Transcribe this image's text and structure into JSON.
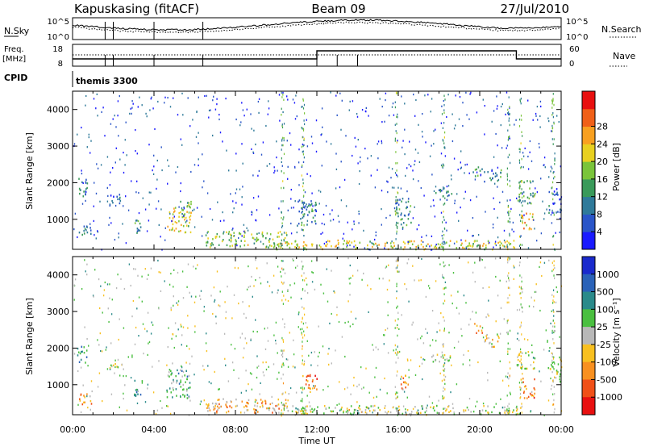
{
  "header": {
    "station": "Kapuskasing (fitACF)",
    "beam": "Beam 09",
    "date": "27/Jul/2010"
  },
  "top_panels": {
    "nsky_label": "N.Sky",
    "nsearch_label": "N.Search",
    "nsky_ticks": [
      "10^5",
      "10^0"
    ],
    "nsearch_ticks": [
      "10^5",
      "10^0"
    ],
    "freq_label_1": "Freq.",
    "freq_label_2": "[MHz]",
    "freq_ticks": [
      "18",
      "8"
    ],
    "nave_label": "Nave",
    "nave_ticks": [
      "60",
      "0"
    ],
    "cpid_label": "CPID",
    "cpid_value": "themis 3300"
  },
  "chart_data": [
    {
      "type": "heatmap",
      "name": "power",
      "ylabel": "Slant Range [km]",
      "yticks": [
        "1000",
        "2000",
        "3000",
        "4000"
      ],
      "ylim": [
        180,
        4500
      ],
      "xticks": [
        "00:00",
        "04:00",
        "08:00",
        "12:00",
        "16:00",
        "20:00",
        "00:00"
      ],
      "xlim_hours": [
        0,
        24
      ],
      "colorbar": {
        "label": "Power [dB]",
        "ticks": [
          "4",
          "8",
          "12",
          "16",
          "20",
          "24",
          "28"
        ],
        "colors": [
          "#1a1aff",
          "#2a55c8",
          "#2f7a9a",
          "#3a9a5a",
          "#7ac43a",
          "#e8d020",
          "#f8a020",
          "#f06018",
          "#e81010"
        ]
      },
      "patches": [
        {
          "t0": 0.2,
          "t1": 0.7,
          "r0": 1600,
          "r1": 2200,
          "level": 0.3
        },
        {
          "t0": 0.3,
          "t1": 0.9,
          "r0": 550,
          "r1": 950,
          "level": 0.3
        },
        {
          "t0": 1.8,
          "t1": 2.4,
          "r0": 1300,
          "r1": 1700,
          "level": 0.2
        },
        {
          "t0": 3.0,
          "t1": 3.4,
          "r0": 650,
          "r1": 1150,
          "level": 0.3
        },
        {
          "t0": 4.6,
          "t1": 5.8,
          "r0": 650,
          "r1": 1350,
          "level": 0.6
        },
        {
          "t0": 5.2,
          "t1": 5.8,
          "r0": 1150,
          "r1": 1600,
          "level": 0.4
        },
        {
          "t0": 6.5,
          "t1": 10.5,
          "r0": 250,
          "r1": 700,
          "level": 0.5
        },
        {
          "t0": 11.0,
          "t1": 12.0,
          "r0": 850,
          "r1": 1600,
          "level": 0.3
        },
        {
          "t0": 10.0,
          "t1": 22.0,
          "r0": 200,
          "r1": 450,
          "level": 0.6
        },
        {
          "t0": 15.8,
          "t1": 16.6,
          "r0": 800,
          "r1": 1600,
          "level": 0.3
        },
        {
          "t0": 17.8,
          "t1": 18.6,
          "r0": 1550,
          "r1": 1850,
          "level": 0.3
        },
        {
          "t0": 19.6,
          "t1": 20.2,
          "r0": 2200,
          "r1": 2450,
          "level": 0.4
        },
        {
          "t0": 20.2,
          "t1": 21.2,
          "r0": 2050,
          "r1": 2400,
          "level": 0.3
        },
        {
          "t0": 21.8,
          "t1": 22.7,
          "r0": 1450,
          "r1": 2100,
          "level": 0.4
        },
        {
          "t0": 22.0,
          "t1": 22.6,
          "r0": 700,
          "r1": 1200,
          "level": 0.7
        },
        {
          "t0": 23.3,
          "t1": 24.0,
          "r0": 1200,
          "r1": 1900,
          "level": 0.2
        }
      ]
    },
    {
      "type": "heatmap",
      "name": "velocity",
      "ylabel": "Slant Range [km]",
      "yticks": [
        "1000",
        "2000",
        "3000",
        "4000"
      ],
      "ylim": [
        180,
        4500
      ],
      "xticks": [
        "00:00",
        "04:00",
        "08:00",
        "12:00",
        "16:00",
        "20:00",
        "00:00"
      ],
      "xlabel": "Time UT",
      "xlim_hours": [
        0,
        24
      ],
      "colorbar": {
        "label": "Velocity [m s⁻¹]",
        "ticks": [
          "1000",
          "500",
          "100",
          "25",
          "-25",
          "-100",
          "-500",
          "-1000"
        ],
        "colors": [
          "#1a2acc",
          "#2a62b8",
          "#2a8a8a",
          "#4abf40",
          "#b8b8b8",
          "#f8c020",
          "#f89020",
          "#f05018",
          "#e81010"
        ]
      },
      "patches": [
        {
          "t0": 0.2,
          "t1": 0.7,
          "r0": 1600,
          "r1": 2100,
          "level": 0.3
        },
        {
          "t0": 0.3,
          "t1": 0.9,
          "r0": 450,
          "r1": 850,
          "level": 0.7
        },
        {
          "t0": 1.8,
          "t1": 2.4,
          "r0": 1350,
          "r1": 1600,
          "level": 0.45
        },
        {
          "t0": 3.0,
          "t1": 3.4,
          "r0": 600,
          "r1": 1150,
          "level": 0.3
        },
        {
          "t0": 4.6,
          "t1": 5.8,
          "r0": 650,
          "r1": 1450,
          "level": 0.35
        },
        {
          "t0": 6.5,
          "t1": 10.5,
          "r0": 250,
          "r1": 650,
          "level": 0.65
        },
        {
          "t0": 10.5,
          "t1": 22.0,
          "r0": 200,
          "r1": 450,
          "level": 0.5
        },
        {
          "t0": 11.2,
          "t1": 12.0,
          "r0": 800,
          "r1": 1300,
          "level": 0.75
        },
        {
          "t0": 16.0,
          "t1": 16.5,
          "r0": 850,
          "r1": 1300,
          "level": 0.7
        },
        {
          "t0": 17.6,
          "t1": 18.6,
          "r0": 1600,
          "r1": 1850,
          "level": 0.45
        },
        {
          "t0": 19.7,
          "t1": 20.1,
          "r0": 2400,
          "r1": 2700,
          "level": 0.75
        },
        {
          "t0": 20.2,
          "t1": 21.0,
          "r0": 2050,
          "r1": 2400,
          "level": 0.6
        },
        {
          "t0": 21.8,
          "t1": 22.7,
          "r0": 1450,
          "r1": 1950,
          "level": 0.5
        },
        {
          "t0": 22.0,
          "t1": 22.7,
          "r0": 650,
          "r1": 1200,
          "level": 0.75
        },
        {
          "t0": 23.3,
          "t1": 24.0,
          "r0": 1100,
          "r1": 1800,
          "level": 0.5
        }
      ]
    }
  ]
}
